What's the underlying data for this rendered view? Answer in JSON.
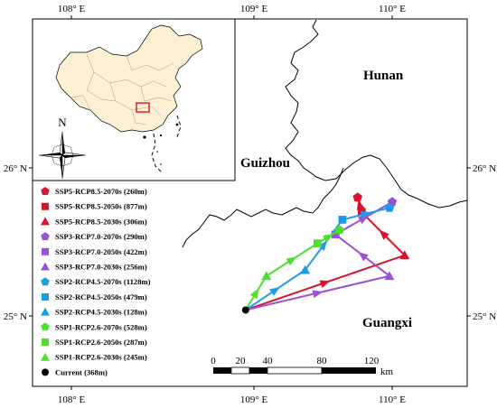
{
  "axes": {
    "top_ticks": [
      "108° E",
      "109° E",
      "110° E"
    ],
    "bottom_ticks": [
      "108° E",
      "109° E",
      "110° E"
    ],
    "left_ticks": [
      "26° N",
      "25° N"
    ],
    "right_ticks": [
      "26° N",
      "25° N"
    ]
  },
  "regions": {
    "hunan": "Hunan",
    "guizhou": "Guizhou",
    "guangxi": "Guangxi"
  },
  "compass": {
    "label": "N"
  },
  "scale_bar": {
    "labels": [
      "0",
      "20",
      "40",
      "80",
      "120"
    ],
    "unit": "km"
  },
  "colors": {
    "ssp5": "#d7142b",
    "ssp3": "#9b50d6",
    "ssp2": "#1e9be6",
    "ssp1": "#4fe02e",
    "current": "#000000",
    "inset_box": "#e3101b",
    "inset_fill": "#fdf0d3"
  },
  "legend": [
    {
      "label": "SSP5-RCP8.5-2070s (260m)",
      "group": "ssp5",
      "marker": "pentagon"
    },
    {
      "label": "SSP5-RCP8.5-2050s (877m)",
      "group": "ssp5",
      "marker": "square"
    },
    {
      "label": "SSP5-RCP8.5-2030s (306m)",
      "group": "ssp5",
      "marker": "triangle"
    },
    {
      "label": "SSP3-RCP7.0-2070s (290m)",
      "group": "ssp3",
      "marker": "pentagon"
    },
    {
      "label": "SSP3-RCP7.0-2050s (422m)",
      "group": "ssp3",
      "marker": "square"
    },
    {
      "label": "SSP3-RCP7.0-2030s (256m)",
      "group": "ssp3",
      "marker": "triangle"
    },
    {
      "label": "SSP2-RCP4.5-2070s (1128m)",
      "group": "ssp2",
      "marker": "pentagon"
    },
    {
      "label": "SSP2-RCP4.5-2050s (479m)",
      "group": "ssp2",
      "marker": "square"
    },
    {
      "label": "SSP2-RCP4.5-2030s (128m)",
      "group": "ssp2",
      "marker": "triangle"
    },
    {
      "label": "SSP1-RCP2.6-2070s (528m)",
      "group": "ssp1",
      "marker": "pentagon"
    },
    {
      "label": "SSP1-RCP2.6-2050s (287m)",
      "group": "ssp1",
      "marker": "square"
    },
    {
      "label": "SSP1-RCP2.6-2030s (245m)",
      "group": "ssp1",
      "marker": "triangle"
    },
    {
      "label": "Current (368m)",
      "group": "current",
      "marker": "circle"
    }
  ],
  "centroid_path": {
    "current": {
      "lon": 108.94,
      "lat": 25.04
    },
    "paths": [
      {
        "group": "ssp5",
        "points": [
          {
            "period": "2030s",
            "lon": 110.09,
            "lat": 25.41
          },
          {
            "period": "2050s",
            "lon": 109.78,
            "lat": 25.7
          },
          {
            "period": "2070s",
            "lon": 109.75,
            "lat": 25.8
          }
        ]
      },
      {
        "group": "ssp3",
        "points": [
          {
            "period": "2030s",
            "lon": 109.98,
            "lat": 25.27
          },
          {
            "period": "2050s",
            "lon": 109.59,
            "lat": 25.55
          },
          {
            "period": "2070s",
            "lon": 110.0,
            "lat": 25.77
          }
        ]
      },
      {
        "group": "ssp2",
        "points": [
          {
            "period": "2030s",
            "lon": 109.37,
            "lat": 25.31
          },
          {
            "period": "2050s",
            "lon": 109.64,
            "lat": 25.65
          },
          {
            "period": "2070s",
            "lon": 109.98,
            "lat": 25.73
          }
        ]
      },
      {
        "group": "ssp1",
        "points": [
          {
            "period": "2030s",
            "lon": 109.09,
            "lat": 25.27
          },
          {
            "period": "2050s",
            "lon": 109.46,
            "lat": 25.49
          },
          {
            "period": "2070s",
            "lon": 109.62,
            "lat": 25.58
          }
        ]
      }
    ]
  }
}
